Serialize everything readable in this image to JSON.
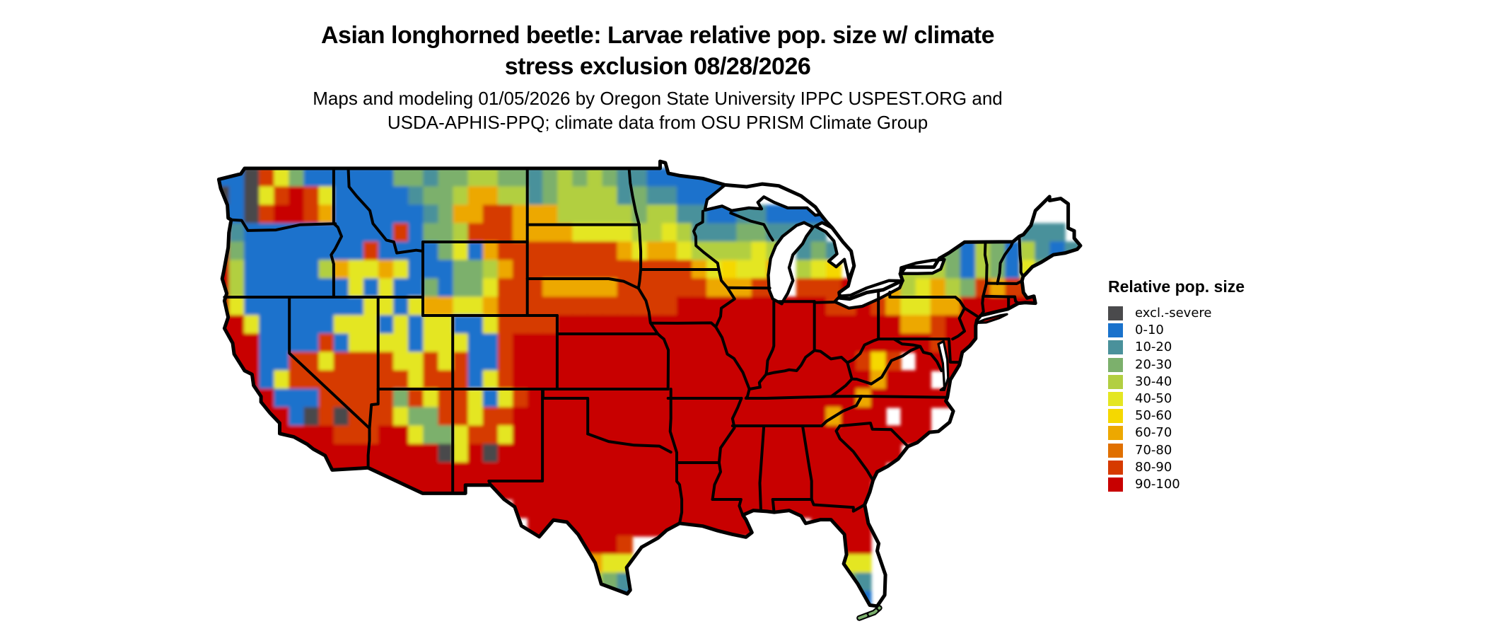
{
  "title": {
    "line1": "Asian longhorned beetle: Larvae relative pop. size w/ climate",
    "line2": "stress exclusion 08/28/2026"
  },
  "subtitle": {
    "line1": "Maps and modeling 01/05/2026 by Oregon State University IPPC USPEST.ORG and",
    "line2": "USDA-APHIS-PPQ; climate data from OSU PRISM Climate Group"
  },
  "legend": {
    "title": "Relative pop. size",
    "items": [
      {
        "label": "excl.-severe",
        "color": "#4A4A4C"
      },
      {
        "label": "0-10",
        "color": "#1A72CC"
      },
      {
        "label": "10-20",
        "color": "#4A919B"
      },
      {
        "label": "20-30",
        "color": "#7CB06C"
      },
      {
        "label": "30-40",
        "color": "#B2CF41"
      },
      {
        "label": "40-50",
        "color": "#E4E622"
      },
      {
        "label": "50-60",
        "color": "#F5D800"
      },
      {
        "label": "60-70",
        "color": "#EDA800"
      },
      {
        "label": "70-80",
        "color": "#E07000"
      },
      {
        "label": "80-90",
        "color": "#D63A00"
      },
      {
        "label": "90-100",
        "color": "#C80000"
      }
    ]
  },
  "chart_data": {
    "type": "heatmap",
    "subject": "Asian longhorned beetle larvae relative population size (0-100) over the conterminous United States with climate stress exclusion, classed in 10-unit bins plus an excluded/severe class",
    "palette": {
      "x": "#4A4A4C",
      "0": "#1A72CC",
      "1": "#4A919B",
      "2": "#7CB06C",
      "3": "#B2CF41",
      "4": "#E4E622",
      "5": "#F5D800",
      "6": "#EDA800",
      "7": "#E07000",
      "8": "#D63A00",
      "9": "#C80000"
    },
    "class_labels": [
      "excl.-severe",
      "0-10",
      "10-20",
      "20-30",
      "30-40",
      "40-50",
      "50-60",
      "60-70",
      "70-80",
      "80-90",
      "90-100"
    ],
    "grid": {
      "lon_min": -125,
      "lon_step": 1,
      "lat_max": 50,
      "lat_step": 1,
      "note": "each char = 1 deg cell, rows north to south, '.' = no data",
      "rows": [
        "...........................................................",
        "00x84200000022122332212323211000000........................",
        "x0x489840000012236633123333121100000.......................",
        "00x89986000000126688666333332331100110000..................",
        "91000000000080223888666644443343111221111.............111..",
        "92000000008000024068888888864664333343.121......2203203101.",
        "93000003644640002236888888888888645446.345....3332032042...",
        "93000000040400202248886666688888866688.8889..6346328688....",
        "9400000000440466446888888888888999999999988986446699999....",
        "99400000444040440048888999999999999999999999996689999......",
        "99900008044440444008999999999999999999999999999989999......",
        "9990088488884484800899999999999999999999999858 9999........",
        "999048888888848880489999999999999999999999996999 99........",
        "99990008888828488404899999999999999999999996999999.........",
        "999990x8x888422884889999999999999999999996999 99...........",
        "....99998889942248849999999999999999999999999999...........",
        ".....9999999999x49x999999999999999999999999999.............",
        ".......99999999999999999999999999999999999999..............",
        "...........999999999999999999999999999999999...............",
        "....................999999999999999999999999...............",
        ".....................999999999999999....9999...............",
        "........................9998..............99...............",
        "........................8644..............44...............",
        ".........................321..............21...............",
        "..........................10..............00...............",
        "..........................................................."
      ]
    }
  }
}
